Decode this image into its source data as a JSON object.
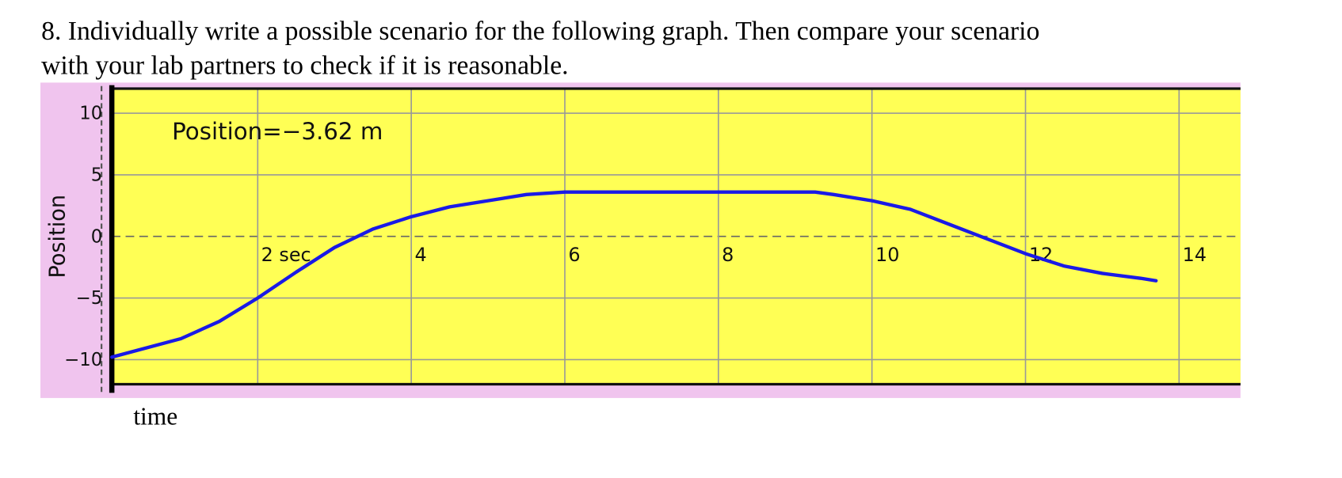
{
  "question_lines": [
    "8. Individually write a possible scenario for the following graph. Then compare your scenario",
    "with your lab partners to check if it is reasonable."
  ],
  "x_caption": "time",
  "chart_data": {
    "type": "line",
    "ylabel": "Position",
    "annotation": "Position=−3.62 m",
    "x": [
      0.1,
      1,
      1.5,
      2,
      2.5,
      3,
      3.5,
      4,
      4.5,
      5,
      5.5,
      6,
      7,
      8,
      9.26,
      9.5,
      10,
      10.5,
      11,
      11.5,
      12,
      12.5,
      13,
      13.5,
      13.7
    ],
    "series": [
      {
        "name": "Position",
        "color": "#1a1ae6",
        "values": [
          -9.8,
          -8.3,
          -6.9,
          -5,
          -2.9,
          -0.9,
          0.6,
          1.6,
          2.4,
          2.9,
          3.4,
          3.6,
          3.6,
          3.6,
          3.6,
          3.4,
          2.9,
          2.2,
          1.0,
          -0.2,
          -1.4,
          -2.4,
          -3.0,
          -3.4,
          -3.6
        ]
      }
    ],
    "xlim": [
      0.1,
      14.8
    ],
    "ylim": [
      -12,
      12
    ],
    "xticks": [
      {
        "value": 2,
        "label": "2 sec"
      },
      4,
      6,
      8,
      10,
      12,
      14
    ],
    "yticks": [
      {
        "value": -10,
        "label": "−10"
      },
      {
        "value": -5,
        "label": "−5"
      },
      0,
      5,
      10
    ],
    "grid": true
  }
}
